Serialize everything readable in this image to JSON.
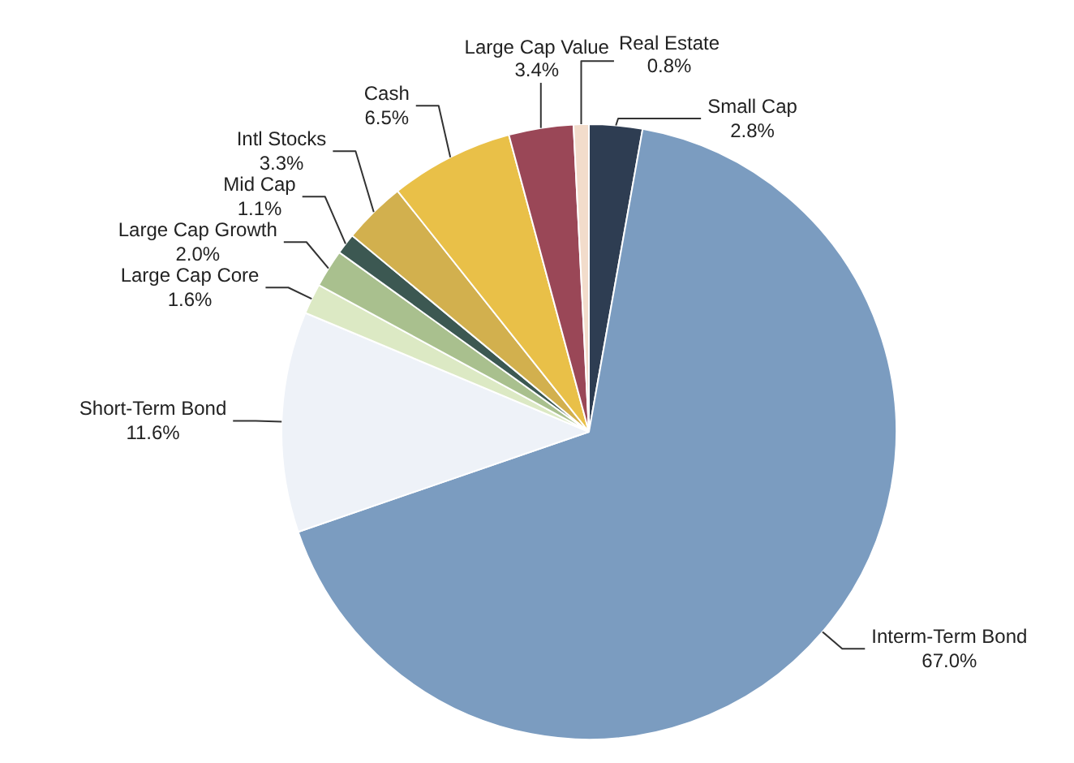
{
  "chart_data": {
    "type": "pie",
    "categories": [
      "Small Cap",
      "Interm-Term Bond",
      "Short-Term Bond",
      "Large Cap Core",
      "Large Cap Growth",
      "Mid Cap",
      "Intl Stocks",
      "Cash",
      "Large Cap Value",
      "Real Estate"
    ],
    "values": [
      2.8,
      67.0,
      11.6,
      1.6,
      2.0,
      1.1,
      3.3,
      6.5,
      3.4,
      0.8
    ],
    "value_labels": [
      "2.8%",
      "67.0%",
      "11.6%",
      "1.6%",
      "2.0%",
      "1.1%",
      "3.3%",
      "6.5%",
      "3.4%",
      "0.8%"
    ],
    "colors": [
      "#2e3d52",
      "#7b9cc0",
      "#eef2f8",
      "#dce9c4",
      "#a9c08e",
      "#3c5852",
      "#d2b04e",
      "#e9c048",
      "#9a4757",
      "#f2dccb"
    ]
  }
}
